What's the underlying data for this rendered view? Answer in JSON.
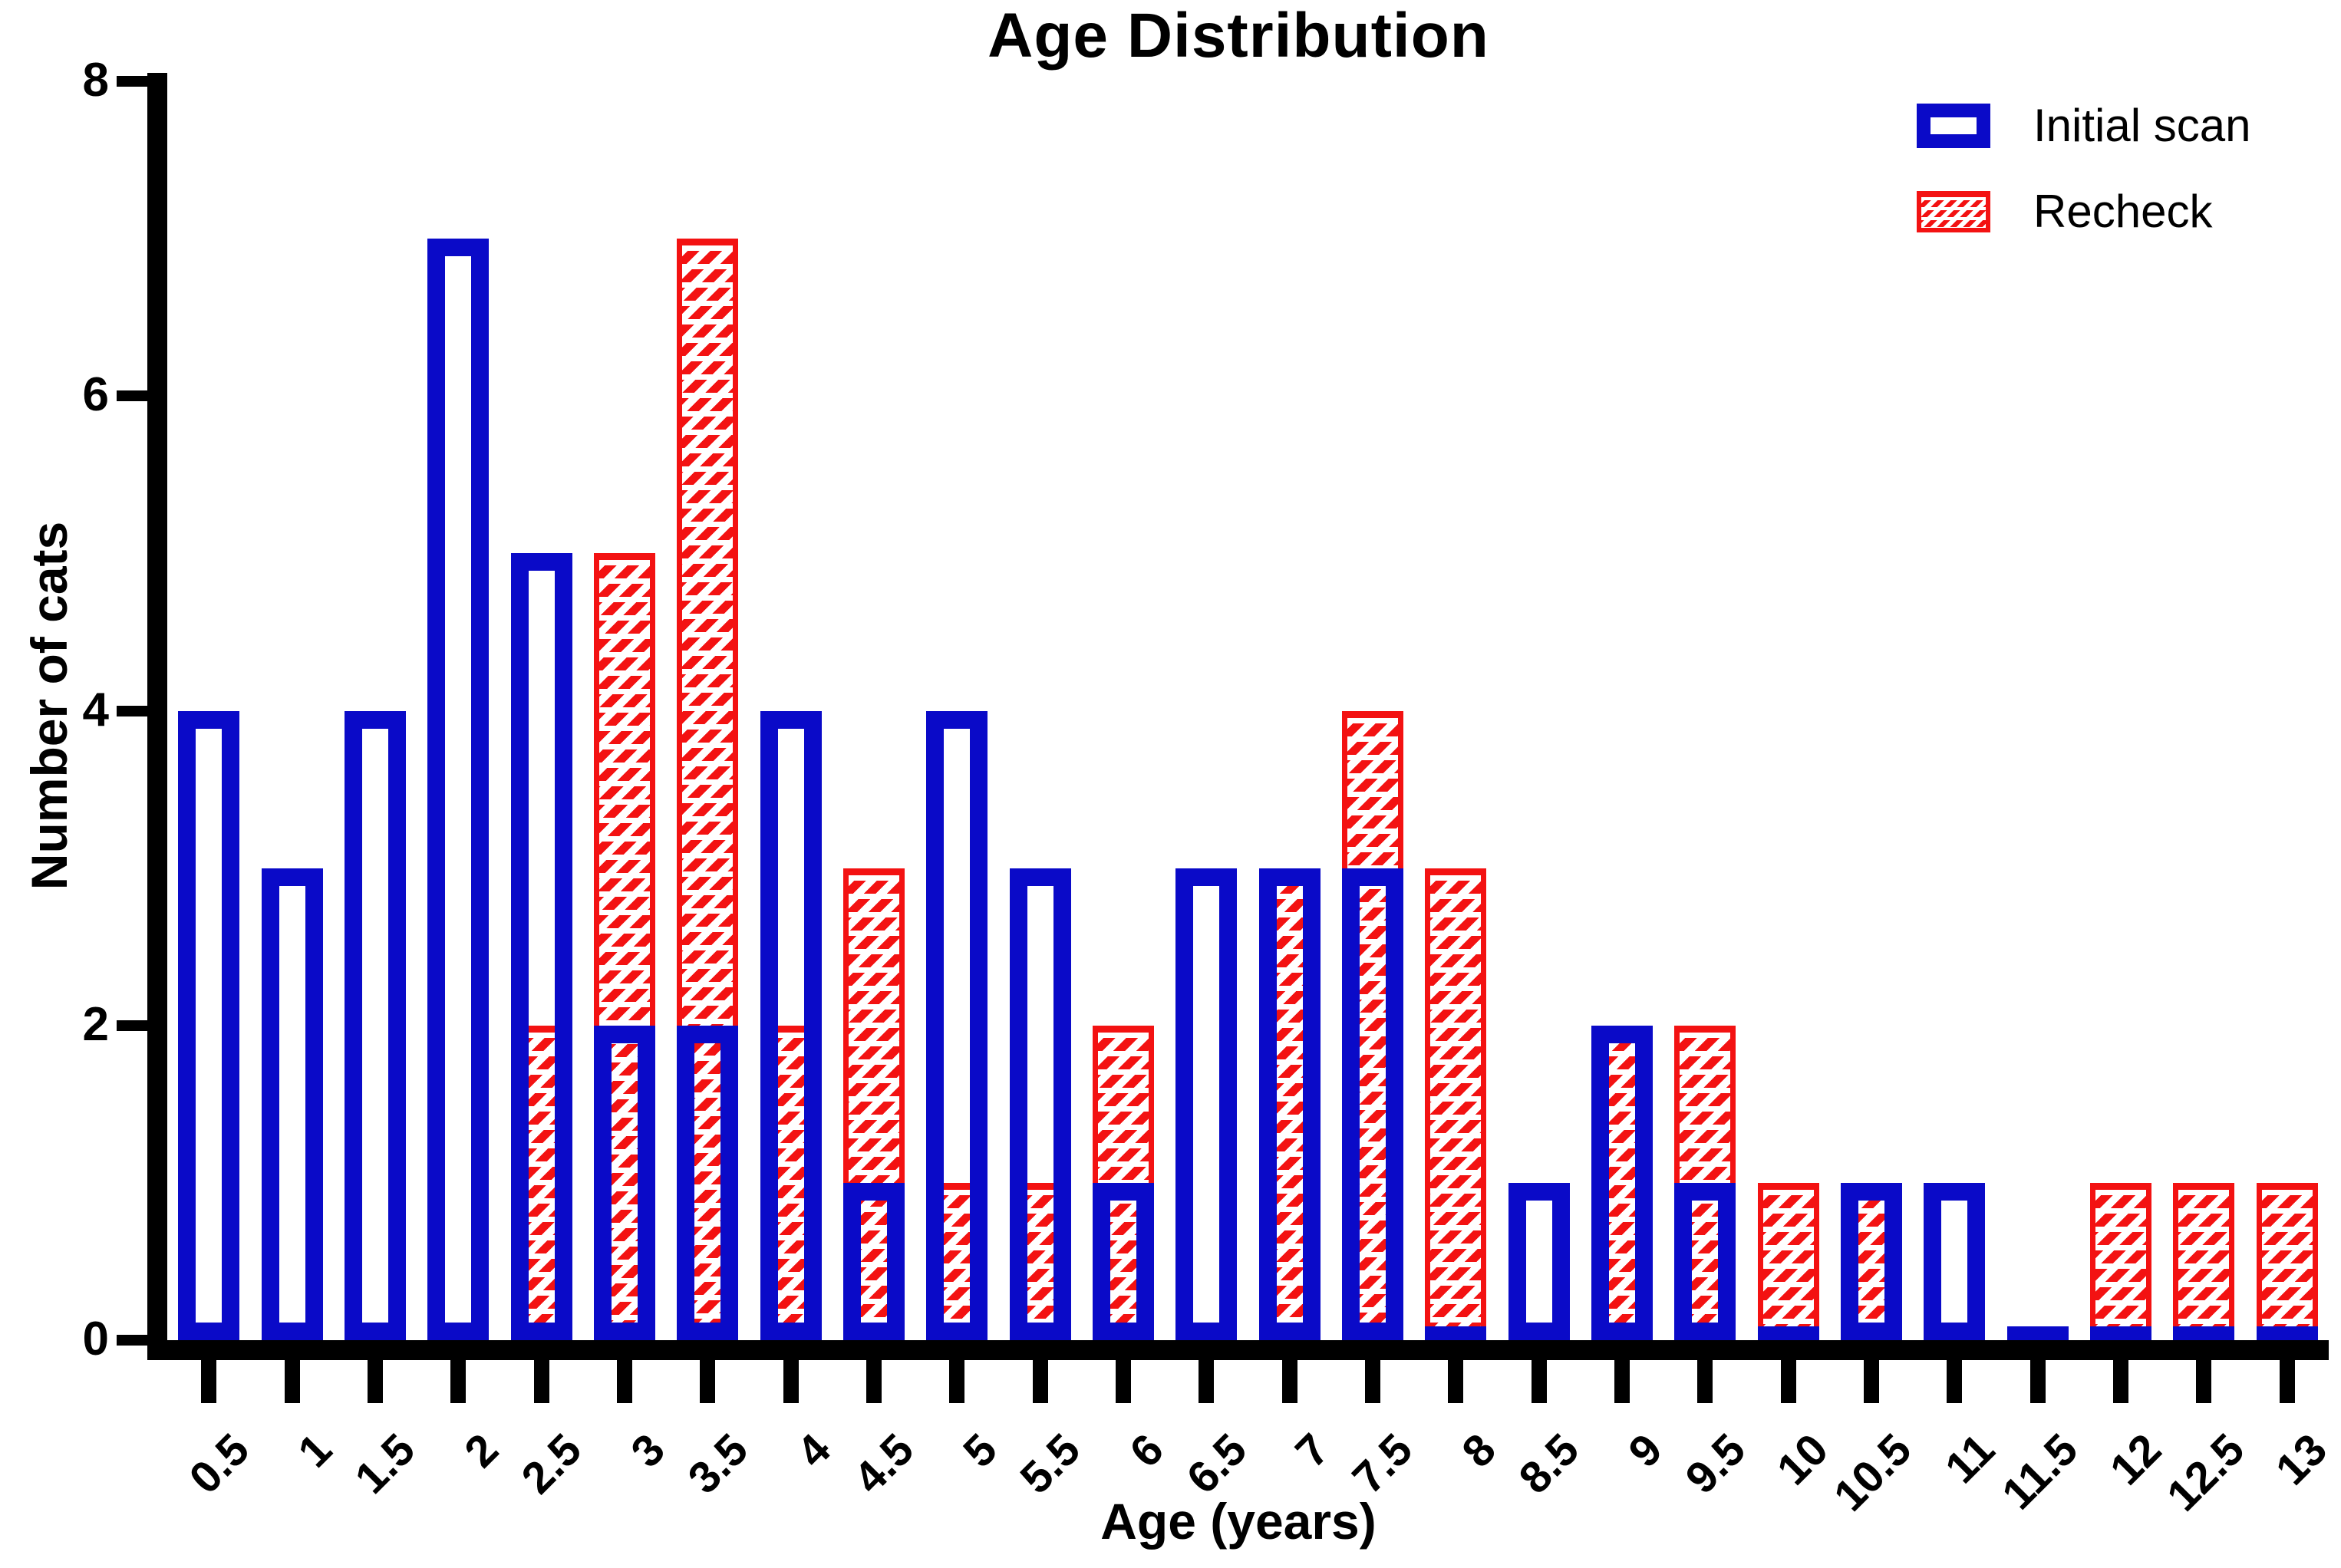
{
  "chart_data": {
    "type": "bar",
    "overlay": "superimposed",
    "title": "Age Distribution",
    "xlabel": "Age (years)",
    "ylabel": "Number of cats",
    "ylim": [
      0,
      8
    ],
    "yticks": [
      0,
      2,
      4,
      6,
      8
    ],
    "grid": false,
    "legend_position": "top-right",
    "categories": [
      "0.5",
      "1",
      "1.5",
      "2",
      "2.5",
      "3",
      "3.5",
      "4",
      "4.5",
      "5",
      "5.5",
      "6",
      "6.5",
      "7",
      "7.5",
      "8",
      "8.5",
      "9",
      "9.5",
      "10",
      "10.5",
      "11",
      "11.5",
      "12",
      "12.5",
      "13"
    ],
    "series": [
      {
        "name": "Initial scan",
        "color": "#0a0ac8",
        "style": "open-outline",
        "values": [
          4,
          3,
          4,
          7,
          5,
          2,
          2,
          4,
          1,
          4,
          3,
          1,
          3,
          3,
          3,
          0,
          1,
          2,
          1,
          0,
          1,
          1,
          0,
          0,
          0,
          0
        ]
      },
      {
        "name": "Recheck",
        "color": "#f31212",
        "style": "hatched",
        "values": [
          0,
          0,
          0,
          0,
          2,
          5,
          7,
          2,
          3,
          1,
          1,
          2,
          0,
          3,
          4,
          3,
          0,
          2,
          2,
          1,
          1,
          0,
          0,
          1,
          1,
          1
        ]
      }
    ]
  },
  "legend": {
    "items": [
      {
        "label": "Initial scan"
      },
      {
        "label": "Recheck"
      }
    ]
  }
}
